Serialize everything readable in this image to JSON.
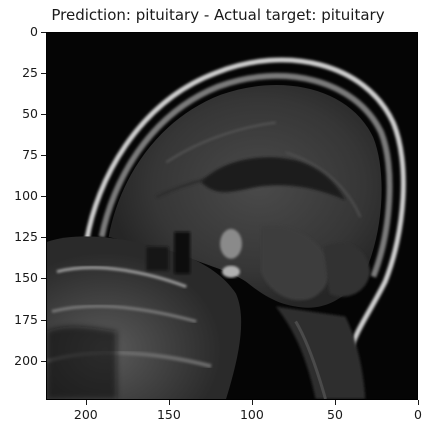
{
  "title": "Prediction: pituitary - Actual target: pituitary",
  "image": {
    "description_icon": "brain-mri-sagittal",
    "colormap": "gray"
  },
  "axes": {
    "x_ticks": [
      "200",
      "150",
      "100",
      "50",
      "0"
    ],
    "x_tick_values": [
      200,
      150,
      100,
      50,
      0
    ],
    "x_range": [
      224,
      0
    ],
    "y_ticks": [
      "0",
      "25",
      "50",
      "75",
      "100",
      "125",
      "150",
      "175",
      "200"
    ],
    "y_tick_values": [
      0,
      25,
      50,
      75,
      100,
      125,
      150,
      175,
      200
    ],
    "y_range": [
      0,
      224
    ]
  }
}
